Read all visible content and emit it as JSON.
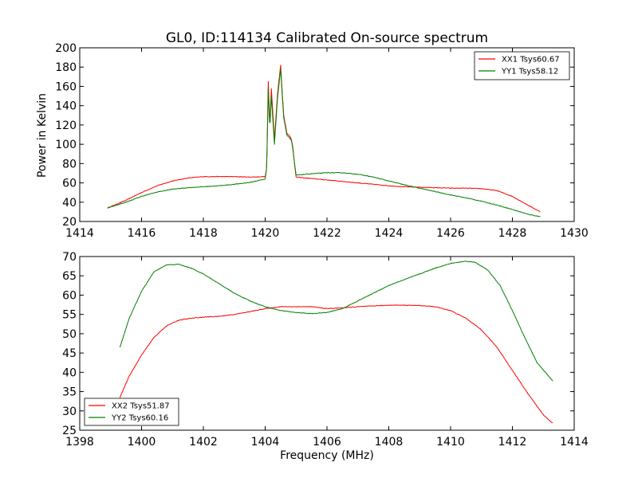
{
  "chart_data": [
    {
      "type": "line",
      "title": "GL0, ID:114134 Calibrated On-source spectrum",
      "xlabel": "",
      "ylabel": "Power in Kelvin",
      "xlim": [
        1414,
        1430
      ],
      "ylim": [
        20,
        200
      ],
      "xticks": [
        "1414",
        "1416",
        "1418",
        "1420",
        "1422",
        "1424",
        "1426",
        "1428",
        "1430"
      ],
      "yticks": [
        "20",
        "40",
        "60",
        "80",
        "100",
        "120",
        "140",
        "160",
        "180",
        "200"
      ],
      "legend": "top-right",
      "grid": false,
      "series": [
        {
          "name": "XX1 Tsys60.67",
          "color": "#ff0000",
          "x": [
            1414.9,
            1415.5,
            1416.0,
            1416.5,
            1417.0,
            1417.5,
            1418.0,
            1418.5,
            1419.0,
            1419.5,
            1420.0,
            1420.05,
            1420.1,
            1420.15,
            1420.2,
            1420.3,
            1420.4,
            1420.5,
            1420.55,
            1420.6,
            1420.7,
            1420.8,
            1420.85,
            1420.9,
            1420.95,
            1421.0,
            1421.5,
            1422.0,
            1422.5,
            1423.0,
            1423.5,
            1424.0,
            1424.5,
            1425.0,
            1425.5,
            1426.0,
            1426.5,
            1427.0,
            1427.5,
            1428.0,
            1428.5,
            1428.9
          ],
          "y": [
            34,
            42,
            50,
            57,
            62,
            65,
            66.5,
            66.5,
            66.5,
            66,
            66.5,
            75,
            165,
            120,
            158,
            105,
            152,
            182,
            155,
            130,
            112,
            108,
            105,
            96,
            80,
            66,
            64.5,
            63,
            61.5,
            60,
            58.5,
            57,
            56,
            55.5,
            55,
            54.5,
            54.5,
            54,
            52,
            46,
            37,
            30
          ]
        },
        {
          "name": "YY1 Tsys58.12",
          "color": "#008000",
          "x": [
            1414.9,
            1415.5,
            1416.0,
            1416.5,
            1417.0,
            1417.5,
            1418.0,
            1418.5,
            1419.0,
            1419.5,
            1420.0,
            1420.05,
            1420.1,
            1420.15,
            1420.2,
            1420.3,
            1420.4,
            1420.5,
            1420.55,
            1420.6,
            1420.7,
            1420.8,
            1420.85,
            1420.9,
            1420.95,
            1421.0,
            1421.5,
            1422.0,
            1422.5,
            1423.0,
            1423.5,
            1424.0,
            1424.5,
            1425.0,
            1425.5,
            1426.0,
            1426.5,
            1427.0,
            1427.5,
            1428.0,
            1428.5,
            1428.9
          ],
          "y": [
            34,
            40,
            46,
            50.5,
            53.5,
            55,
            56,
            57,
            58.5,
            60.5,
            64,
            75,
            158,
            115,
            150,
            100,
            148,
            178,
            152,
            128,
            110,
            106,
            104,
            94,
            80,
            68,
            69.5,
            70.5,
            70.5,
            69,
            66,
            62,
            58,
            54.5,
            51,
            47.5,
            44.5,
            41,
            37,
            32.5,
            27.5,
            25
          ]
        }
      ]
    },
    {
      "type": "line",
      "title": "",
      "xlabel": "Frequency (MHz)",
      "ylabel": "",
      "xlim": [
        1398,
        1414
      ],
      "ylim": [
        25,
        70
      ],
      "xticks": [
        "1398",
        "1400",
        "1402",
        "1404",
        "1406",
        "1408",
        "1410",
        "1412",
        "1414"
      ],
      "yticks": [
        "25",
        "30",
        "35",
        "40",
        "45",
        "50",
        "55",
        "60",
        "65",
        "70"
      ],
      "legend": "bottom-left",
      "grid": false,
      "series": [
        {
          "name": "XX2 Tsys51.87",
          "color": "#ff0000",
          "x": [
            1399.3,
            1399.6,
            1400.0,
            1400.4,
            1400.8,
            1401.2,
            1401.6,
            1402.0,
            1402.5,
            1403.0,
            1403.5,
            1404.0,
            1404.5,
            1405.0,
            1405.5,
            1406.0,
            1406.5,
            1407.0,
            1407.5,
            1408.0,
            1408.5,
            1409.0,
            1409.5,
            1410.0,
            1410.5,
            1411.0,
            1411.5,
            1412.0,
            1412.5,
            1413.0,
            1413.3
          ],
          "y": [
            33.5,
            39,
            44.5,
            49,
            52,
            53.5,
            54,
            54.3,
            54.5,
            55,
            55.7,
            56.5,
            57,
            57,
            57,
            56.5,
            56.7,
            57,
            57.2,
            57.4,
            57.4,
            57.3,
            57,
            56,
            54,
            51,
            46.5,
            40.5,
            34.5,
            29,
            26.8
          ]
        },
        {
          "name": "YY2 Tsys60.16",
          "color": "#008000",
          "x": [
            1399.3,
            1399.6,
            1400.0,
            1400.4,
            1400.8,
            1401.2,
            1401.6,
            1402.0,
            1402.5,
            1403.0,
            1403.5,
            1404.0,
            1404.5,
            1405.0,
            1405.5,
            1406.0,
            1406.5,
            1407.0,
            1407.5,
            1408.0,
            1408.5,
            1409.0,
            1409.5,
            1410.0,
            1410.5,
            1410.8,
            1411.2,
            1411.6,
            1412.0,
            1412.4,
            1412.8,
            1413.3
          ],
          "y": [
            46.5,
            54,
            61,
            66,
            67.8,
            68,
            67,
            65.5,
            63,
            60.5,
            58.5,
            57,
            56,
            55.5,
            55.2,
            55.5,
            56.5,
            58.5,
            60.5,
            62.5,
            64,
            65.5,
            67,
            68.2,
            68.8,
            68.5,
            66.5,
            62.5,
            56,
            49,
            42.5,
            37.8
          ]
        }
      ]
    }
  ]
}
